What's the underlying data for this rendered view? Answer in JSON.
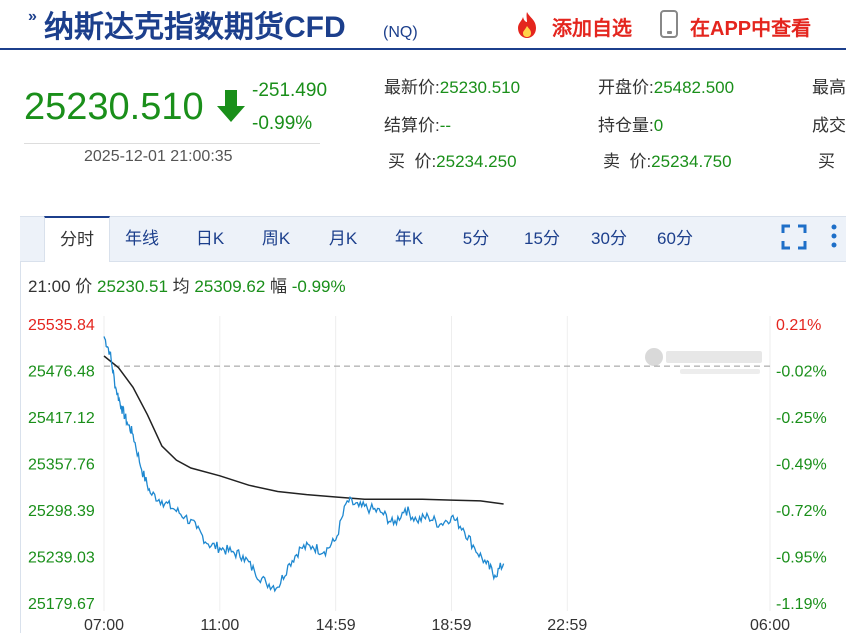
{
  "header": {
    "title": "纳斯达克指数期货CFD",
    "code": "(NQ)",
    "add_favorite": "添加自选",
    "view_in_app": "在APP中查看"
  },
  "quote": {
    "price": "25230.510",
    "change": "-251.490",
    "change_pct": "-0.99%",
    "timestamp": "2025-12-01 21:00:35"
  },
  "fields": {
    "latest_label": "最新价:",
    "latest_value": "25230.510",
    "settle_label": "结算价:",
    "settle_value": "--",
    "bid_label": "买  价:",
    "bid_value": "25234.250",
    "open_label": "开盘价:",
    "open_value": "25482.500",
    "oi_label": "持仓量:",
    "oi_value": "0",
    "ask_label": "卖  价:",
    "ask_value": "25234.750",
    "col3_row1": "最高",
    "col3_row2": "成交",
    "col3_row3": "买"
  },
  "tabs": [
    "分时",
    "年线",
    "日K",
    "周K",
    "月K",
    "年K",
    "5分",
    "15分",
    "30分",
    "60分"
  ],
  "active_tab": 0,
  "info_bar": {
    "time": "21:00",
    "price_label": "价",
    "price_value": "25230.51",
    "avg_label": "均",
    "avg_value": "25309.62",
    "range_label": "幅",
    "range_value": "-0.99%"
  },
  "colors": {
    "brand": "#1c3f8c",
    "down": "#1a8f1a",
    "up": "#e4251e",
    "price_line": "#1e88d0",
    "avg_line": "#222222"
  },
  "chart_data": {
    "type": "line",
    "x_ticks": [
      "07:00",
      "11:00",
      "14:59",
      "18:59",
      "22:59",
      "06:00"
    ],
    "y_ticks": [
      25535.84,
      25476.48,
      25417.12,
      25357.76,
      25298.39,
      25239.03,
      25179.67
    ],
    "y_tick_labels": [
      "25535.84",
      "25476.48",
      "25417.12",
      "25357.76",
      "25298.39",
      "25239.03",
      "25179.67"
    ],
    "pct_ticks": [
      "0.21%",
      "-0.02%",
      "-0.25%",
      "-0.49%",
      "-0.72%",
      "-0.95%",
      "-1.19%"
    ],
    "ylim": [
      25179.67,
      25535.84
    ],
    "prev_close": 25482.0,
    "x_range_hours": [
      0,
      23
    ],
    "series": [
      {
        "label": "价",
        "x": [
          0,
          0.2,
          0.4,
          0.6,
          0.8,
          1.0,
          1.3,
          1.6,
          2.0,
          2.4,
          2.8,
          3.2,
          3.6,
          4.0,
          4.4,
          4.8,
          5.2,
          5.6,
          6.0,
          6.4,
          6.8,
          7.2,
          7.6,
          8.0,
          8.4,
          8.8,
          9.2,
          9.6,
          10.0,
          10.4,
          10.8,
          11.2,
          11.6,
          12.0,
          12.4,
          12.8,
          13.2,
          13.5,
          13.8
        ],
        "y": [
          25520,
          25500,
          25455,
          25430,
          25410,
          25395,
          25350,
          25320,
          25310,
          25300,
          25290,
          25275,
          25255,
          25250,
          25245,
          25240,
          25220,
          25205,
          25200,
          25230,
          25250,
          25252,
          25245,
          25260,
          25310,
          25303,
          25300,
          25295,
          25280,
          25300,
          25285,
          25290,
          25280,
          25290,
          25275,
          25250,
          25230,
          25215,
          25230
        ]
      },
      {
        "label": "均",
        "x": [
          0,
          0.5,
          1.0,
          1.5,
          2.0,
          2.5,
          3.0,
          4.0,
          5.0,
          6.0,
          7.0,
          8.0,
          9.0,
          10.0,
          11.0,
          12.0,
          13.0,
          13.8
        ],
        "y": [
          25495,
          25480,
          25455,
          25420,
          25380,
          25362,
          25352,
          25342,
          25330,
          25322,
          25318,
          25315,
          25312,
          25312,
          25312,
          25311,
          25310,
          25306
        ]
      }
    ]
  }
}
